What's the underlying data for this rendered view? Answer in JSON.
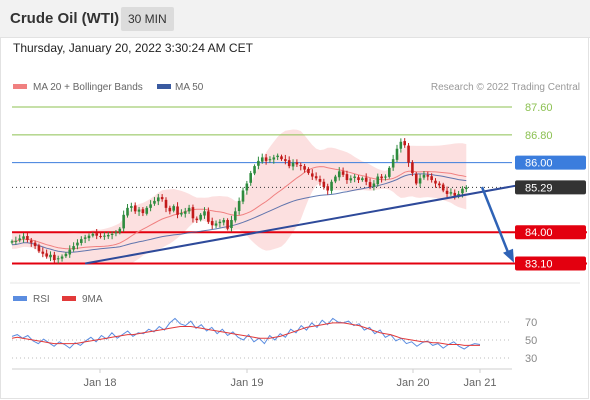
{
  "header": {
    "title": "Crude Oil (WTI)",
    "timeframe": "30 MIN",
    "datetime": "Thursday, January 20, 2022 3:30:24 AM CET"
  },
  "legend": {
    "ma20_label": "MA 20 + Bollinger Bands",
    "ma50_label": "MA 50",
    "credit": "Research © 2022 Trading Central",
    "rsi_label": "RSI",
    "ma9_label": "9MA"
  },
  "colors": {
    "ma20": "#f08080",
    "ma50": "#3a5aa0",
    "bands": "#fbd6d6",
    "resistance": "#8cc152",
    "pivot": "#3b7ddd",
    "support": "#e3000f",
    "current": "#333333",
    "trend": "#2e4a9a",
    "arrow": "#2f63b6",
    "up_candle": "#2e8b3e",
    "down_candle": "#c21a1a",
    "rsi": "#5b8de0",
    "rsi_ma": "#e23a3a"
  },
  "chart_data": [
    {
      "type": "candlestick",
      "title": "Crude Oil (WTI)",
      "timeframe": "30 MIN",
      "x_labels": [
        "Jan 18",
        "Jan 19",
        "Jan 20",
        "Jan 21"
      ],
      "ylim": [
        82.85,
        87.9
      ],
      "levels": [
        {
          "label": "87.60",
          "value": 87.6,
          "kind": "resistance"
        },
        {
          "label": "86.80",
          "value": 86.8,
          "kind": "resistance"
        },
        {
          "label": "86.00",
          "value": 86.0,
          "kind": "pivot"
        },
        {
          "label": "85.29",
          "value": 85.29,
          "kind": "current"
        },
        {
          "label": "84.00",
          "value": 84.0,
          "kind": "support"
        },
        {
          "label": "83.10",
          "value": 83.1,
          "kind": "support"
        }
      ],
      "series": [
        {
          "name": "MA 20 + Bollinger Bands"
        },
        {
          "name": "MA 50"
        }
      ],
      "trendline": {
        "from": [
          0,
          83.1
        ],
        "to": [
          136,
          85.44
        ]
      },
      "forecast_arrow": {
        "from": [
          141,
          85.3
        ],
        "to": [
          160,
          83.15
        ]
      },
      "closes": [
        83.74,
        83.75,
        83.82,
        83.88,
        83.78,
        83.7,
        83.6,
        83.45,
        83.38,
        83.3,
        83.35,
        83.2,
        83.25,
        83.3,
        83.38,
        83.5,
        83.6,
        83.7,
        83.8,
        83.85,
        83.9,
        83.95,
        83.9,
        83.88,
        83.9,
        83.92,
        83.95,
        84.0,
        84.1,
        84.5,
        84.7,
        84.75,
        84.6,
        84.65,
        84.55,
        84.7,
        84.8,
        84.9,
        85.0,
        84.95,
        84.7,
        84.6,
        84.75,
        84.5,
        84.55,
        84.6,
        84.7,
        84.4,
        84.35,
        84.5,
        84.6,
        84.3,
        84.2,
        84.25,
        84.3,
        84.35,
        84.1,
        84.35,
        84.6,
        84.9,
        85.2,
        85.4,
        85.7,
        85.9,
        86.05,
        86.15,
        86.05,
        86.1,
        86.15,
        86.2,
        86.1,
        86.05,
        85.9,
        86.0,
        85.95,
        85.9,
        85.8,
        85.7,
        85.6,
        85.55,
        85.45,
        85.3,
        85.2,
        85.45,
        85.6,
        85.75,
        85.65,
        85.5,
        85.55,
        85.6,
        85.5,
        85.55,
        85.45,
        85.3,
        85.4,
        85.6,
        85.55,
        85.6,
        85.85,
        86.1,
        86.4,
        86.6,
        86.5,
        86.0,
        85.7,
        85.4,
        85.55,
        85.65,
        85.6,
        85.5,
        85.4,
        85.35,
        85.2,
        85.1,
        85.15,
        85.05,
        85.1,
        85.25,
        85.29
      ]
    },
    {
      "type": "line",
      "title": "RSI",
      "ylim": [
        20,
        80
      ],
      "y_ticks": [
        70,
        50,
        30
      ],
      "series": [
        {
          "name": "RSI",
          "values": [
            54,
            56,
            52,
            55,
            49,
            46,
            51,
            47,
            43,
            48,
            45,
            41,
            47,
            44,
            49,
            53,
            48,
            55,
            51,
            58,
            52,
            56,
            60,
            54,
            58,
            57,
            62,
            59,
            65,
            61,
            69,
            74,
            68,
            66,
            71,
            63,
            67,
            60,
            64,
            57,
            62,
            55,
            59,
            53,
            50,
            56,
            48,
            52,
            46,
            55,
            50,
            57,
            53,
            62,
            58,
            66,
            61,
            69,
            64,
            72,
            67,
            74,
            70,
            69,
            71,
            66,
            68,
            61,
            64,
            57,
            61,
            53,
            56,
            49,
            52,
            46,
            48,
            43,
            47,
            49,
            44,
            46,
            41,
            45,
            48,
            43,
            40,
            44,
            46,
            45
          ]
        },
        {
          "name": "9MA",
          "values": [
            52,
            53,
            52,
            51,
            50,
            49,
            48,
            47,
            46,
            46,
            46,
            46,
            46,
            47,
            48,
            49,
            50,
            51,
            52,
            53,
            54,
            55,
            56,
            56,
            57,
            58,
            59,
            60,
            61,
            62,
            63,
            64,
            65,
            65,
            65,
            64,
            63,
            62,
            61,
            60,
            59,
            58,
            57,
            56,
            55,
            54,
            53,
            52,
            52,
            52,
            53,
            54,
            56,
            58,
            60,
            62,
            64,
            65,
            66,
            67,
            68,
            69,
            69,
            69,
            68,
            67,
            66,
            64,
            62,
            60,
            58,
            57,
            56,
            54,
            52,
            51,
            50,
            49,
            48,
            48,
            47,
            47,
            46,
            45,
            45,
            45,
            44,
            44,
            44,
            44
          ]
        }
      ]
    }
  ]
}
